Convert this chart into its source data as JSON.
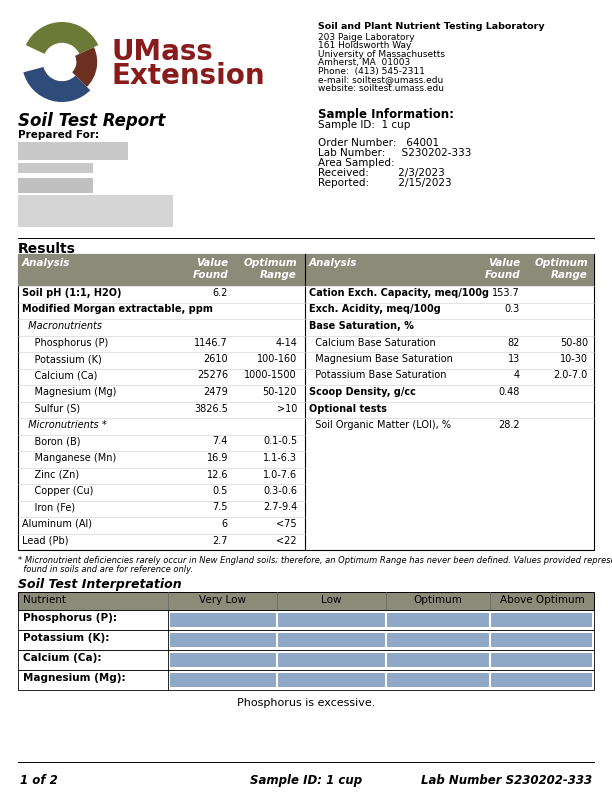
{
  "page_size_inches": [
    6.12,
    7.92
  ],
  "dpi": 100,
  "bg_color": "#ffffff",
  "header": {
    "lab_name": "Soil and Plant Nutrient Testing Laboratory",
    "lab_address": [
      "203 Paige Laboratory",
      "161 Holdsworth Way",
      "University of Massachusetts",
      "Amherst, MA  01003",
      "Phone:  (413) 545-2311",
      "e-mail: soiltest@umass.edu",
      "website: soiltest.umass.edu"
    ],
    "report_title": "Soil Test Report",
    "prepared_for": "Prepared For:",
    "sample_info_title": "Sample Information:",
    "sample_id_label": "Sample ID:  1 cup",
    "order_number": "Order Number:   64001",
    "lab_number": "Lab Number:     S230202-333",
    "area_sampled": "Area Sampled:",
    "received": "Received:         2/3/2023",
    "reported": "Reported:         2/15/2023"
  },
  "results_title": "Results",
  "table_header_bg": "#8B8B7A",
  "table_border": "#000000",
  "left_table": {
    "rows": [
      {
        "name": "Soil pH (1:1, H2O)",
        "value": "6.2",
        "range": "",
        "bold": true,
        "italic": false,
        "indent": 0
      },
      {
        "name": "Modified Morgan extractable, ppm",
        "value": "",
        "range": "",
        "bold": true,
        "italic": false,
        "indent": 0
      },
      {
        "name": "  Macronutrients",
        "value": "",
        "range": "",
        "bold": false,
        "italic": true,
        "indent": 0
      },
      {
        "name": "    Phosphorus (P)",
        "value": "1146.7",
        "range": "4-14",
        "bold": false,
        "italic": false,
        "indent": 0
      },
      {
        "name": "    Potassium (K)",
        "value": "2610",
        "range": "100-160",
        "bold": false,
        "italic": false,
        "indent": 0
      },
      {
        "name": "    Calcium (Ca)",
        "value": "25276",
        "range": "1000-1500",
        "bold": false,
        "italic": false,
        "indent": 0
      },
      {
        "name": "    Magnesium (Mg)",
        "value": "2479",
        "range": "50-120",
        "bold": false,
        "italic": false,
        "indent": 0
      },
      {
        "name": "    Sulfur (S)",
        "value": "3826.5",
        "range": ">10",
        "bold": false,
        "italic": false,
        "indent": 0
      },
      {
        "name": "  Micronutrients *",
        "value": "",
        "range": "",
        "bold": false,
        "italic": true,
        "indent": 0
      },
      {
        "name": "    Boron (B)",
        "value": "7.4",
        "range": "0.1-0.5",
        "bold": false,
        "italic": false,
        "indent": 0
      },
      {
        "name": "    Manganese (Mn)",
        "value": "16.9",
        "range": "1.1-6.3",
        "bold": false,
        "italic": false,
        "indent": 0
      },
      {
        "name": "    Zinc (Zn)",
        "value": "12.6",
        "range": "1.0-7.6",
        "bold": false,
        "italic": false,
        "indent": 0
      },
      {
        "name": "    Copper (Cu)",
        "value": "0.5",
        "range": "0.3-0.6",
        "bold": false,
        "italic": false,
        "indent": 0
      },
      {
        "name": "    Iron (Fe)",
        "value": "7.5",
        "range": "2.7-9.4",
        "bold": false,
        "italic": false,
        "indent": 0
      },
      {
        "name": "Aluminum (Al)",
        "value": "6",
        "range": "<75",
        "bold": false,
        "italic": false,
        "indent": 0
      },
      {
        "name": "Lead (Pb)",
        "value": "2.7",
        "range": "<22",
        "bold": false,
        "italic": false,
        "indent": 0
      }
    ]
  },
  "right_table": {
    "rows": [
      {
        "name": "Cation Exch. Capacity, meq/100g",
        "value": "153.7",
        "range": "",
        "bold": true,
        "indent": 0
      },
      {
        "name": "Exch. Acidity, meq/100g",
        "value": "0.3",
        "range": "",
        "bold": true,
        "indent": 0
      },
      {
        "name": "Base Saturation, %",
        "value": "",
        "range": "",
        "bold": true,
        "indent": 0
      },
      {
        "name": "  Calcium Base Saturation",
        "value": "82",
        "range": "50-80",
        "bold": false,
        "indent": 0
      },
      {
        "name": "  Magnesium Base Saturation",
        "value": "13",
        "range": "10-30",
        "bold": false,
        "indent": 0
      },
      {
        "name": "  Potassium Base Saturation",
        "value": "4",
        "range": "2.0-7.0",
        "bold": false,
        "indent": 0
      },
      {
        "name": "Scoop Density, g/cc",
        "value": "0.48",
        "range": "",
        "bold": true,
        "indent": 0
      },
      {
        "name": "Optional tests",
        "value": "",
        "range": "",
        "bold": true,
        "indent": 0
      },
      {
        "name": "  Soil Organic Matter (LOI), %",
        "value": "28.2",
        "range": "",
        "bold": false,
        "indent": 0
      }
    ]
  },
  "footnote_line1": "* Micronutrient deficiencies rarely occur in New England soils; therefore, an Optimum Range has never been defined. Values provided represent the normal range",
  "footnote_line2": "  found in soils and are for reference only.",
  "interp_title": "Soil Test Interpretation",
  "interp_table": {
    "header": [
      "Nutrient",
      "Very Low",
      "Low",
      "Optimum",
      "Above Optimum"
    ],
    "header_bg": "#8B8B7A",
    "bar_color": "#8fa8c8",
    "rows": [
      {
        "name": "Phosphorus (P):"
      },
      {
        "name": "Potassium (K):"
      },
      {
        "name": "Calcium (Ca):"
      },
      {
        "name": "Magnesium (Mg):"
      }
    ]
  },
  "interp_note": "Phosphorus is excessive.",
  "footer_left": "1 of 2",
  "footer_center": "Sample ID: 1 cup",
  "footer_right": "Lab Number S230202-333",
  "umass_colors": {
    "dark_red": "#881c1c",
    "olive_green": "#6b7a36",
    "dark_blue": "#2e4b7a",
    "swirl_brown": "#6b3020"
  }
}
